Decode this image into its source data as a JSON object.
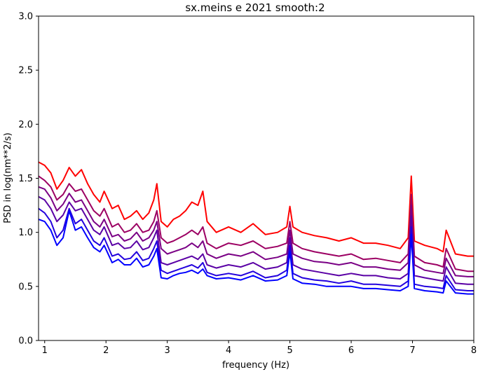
{
  "chart_data": {
    "type": "line",
    "title": "sx.meins e 2021 smooth:2",
    "xlabel": "frequency (Hz)",
    "ylabel": "PSD in log(nm**2/s)",
    "xlim": [
      0.9,
      8
    ],
    "ylim": [
      0.0,
      3.0
    ],
    "x_ticks": [
      1,
      2,
      3,
      4,
      5,
      6,
      7,
      8
    ],
    "x_tick_labels": [
      "1",
      "2",
      "3",
      "4",
      "5",
      "6",
      "7",
      "8"
    ],
    "y_ticks": [
      0.0,
      0.5,
      1.0,
      1.5,
      2.0,
      2.5,
      3.0
    ],
    "y_tick_labels": [
      "0.0",
      "0.5",
      "1.0",
      "1.5",
      "2.0",
      "2.5",
      "3.0"
    ],
    "grid": false,
    "legend": "none",
    "series": [
      {
        "color": "#ff0000",
        "x": [
          0.9,
          1.0,
          1.1,
          1.2,
          1.3,
          1.4,
          1.5,
          1.6,
          1.7,
          1.8,
          1.9,
          1.97,
          2.1,
          2.2,
          2.3,
          2.4,
          2.5,
          2.6,
          2.7,
          2.78,
          2.83,
          2.9,
          3.0,
          3.1,
          3.2,
          3.3,
          3.4,
          3.5,
          3.58,
          3.65,
          3.8,
          4.0,
          4.2,
          4.4,
          4.6,
          4.8,
          4.95,
          5.0,
          5.05,
          5.2,
          5.4,
          5.6,
          5.8,
          6.0,
          6.2,
          6.4,
          6.6,
          6.8,
          6.93,
          6.98,
          7.03,
          7.2,
          7.4,
          7.5,
          7.55,
          7.7,
          7.9,
          8.0
        ],
        "y": [
          1.65,
          1.62,
          1.55,
          1.4,
          1.48,
          1.6,
          1.52,
          1.58,
          1.45,
          1.35,
          1.28,
          1.38,
          1.22,
          1.25,
          1.12,
          1.15,
          1.2,
          1.12,
          1.18,
          1.3,
          1.45,
          1.1,
          1.05,
          1.12,
          1.15,
          1.2,
          1.28,
          1.25,
          1.38,
          1.1,
          1.0,
          1.05,
          1.0,
          1.08,
          0.98,
          1.0,
          1.05,
          1.24,
          1.05,
          1.0,
          0.97,
          0.95,
          0.92,
          0.95,
          0.9,
          0.9,
          0.88,
          0.85,
          0.95,
          1.52,
          0.92,
          0.88,
          0.85,
          0.82,
          1.02,
          0.8,
          0.78,
          0.78
        ]
      },
      {
        "color": "#9c0063",
        "x": [
          0.9,
          1.0,
          1.1,
          1.2,
          1.3,
          1.4,
          1.5,
          1.6,
          1.7,
          1.8,
          1.9,
          1.97,
          2.1,
          2.2,
          2.3,
          2.4,
          2.5,
          2.6,
          2.7,
          2.78,
          2.83,
          2.9,
          3.0,
          3.1,
          3.2,
          3.3,
          3.4,
          3.5,
          3.58,
          3.65,
          3.8,
          4.0,
          4.2,
          4.4,
          4.6,
          4.8,
          4.95,
          5.0,
          5.05,
          5.2,
          5.4,
          5.6,
          5.8,
          6.0,
          6.2,
          6.4,
          6.6,
          6.8,
          6.93,
          6.98,
          7.03,
          7.2,
          7.4,
          7.5,
          7.55,
          7.7,
          7.9,
          8.0
        ],
        "y": [
          1.52,
          1.48,
          1.42,
          1.3,
          1.35,
          1.45,
          1.38,
          1.4,
          1.3,
          1.2,
          1.15,
          1.22,
          1.05,
          1.08,
          1.0,
          1.02,
          1.08,
          1.0,
          1.02,
          1.1,
          1.2,
          0.95,
          0.9,
          0.92,
          0.95,
          0.98,
          1.02,
          0.98,
          1.05,
          0.9,
          0.85,
          0.9,
          0.88,
          0.92,
          0.85,
          0.87,
          0.9,
          1.1,
          0.9,
          0.85,
          0.82,
          0.8,
          0.78,
          0.8,
          0.75,
          0.76,
          0.74,
          0.72,
          0.8,
          1.35,
          0.78,
          0.72,
          0.7,
          0.68,
          0.85,
          0.66,
          0.64,
          0.64
        ]
      },
      {
        "color": "#7a0085",
        "x": [
          0.9,
          1.0,
          1.1,
          1.2,
          1.3,
          1.4,
          1.5,
          1.6,
          1.7,
          1.8,
          1.9,
          1.97,
          2.1,
          2.2,
          2.3,
          2.4,
          2.5,
          2.6,
          2.7,
          2.78,
          2.83,
          2.9,
          3.0,
          3.1,
          3.2,
          3.3,
          3.4,
          3.5,
          3.58,
          3.65,
          3.8,
          4.0,
          4.2,
          4.4,
          4.6,
          4.8,
          4.95,
          5.0,
          5.05,
          5.2,
          5.4,
          5.6,
          5.8,
          6.0,
          6.2,
          6.4,
          6.6,
          6.8,
          6.93,
          6.98,
          7.03,
          7.2,
          7.4,
          7.5,
          7.55,
          7.7,
          7.9,
          8.0
        ],
        "y": [
          1.42,
          1.4,
          1.32,
          1.2,
          1.26,
          1.36,
          1.28,
          1.3,
          1.2,
          1.1,
          1.05,
          1.12,
          0.96,
          0.98,
          0.92,
          0.94,
          1.0,
          0.92,
          0.95,
          1.02,
          1.1,
          0.85,
          0.8,
          0.82,
          0.84,
          0.86,
          0.9,
          0.86,
          0.92,
          0.8,
          0.76,
          0.8,
          0.78,
          0.82,
          0.75,
          0.77,
          0.8,
          1.02,
          0.8,
          0.76,
          0.73,
          0.72,
          0.7,
          0.72,
          0.68,
          0.68,
          0.66,
          0.65,
          0.72,
          1.25,
          0.7,
          0.65,
          0.63,
          0.62,
          0.76,
          0.6,
          0.59,
          0.59
        ]
      },
      {
        "color": "#5a00a5",
        "x": [
          0.9,
          1.0,
          1.1,
          1.2,
          1.3,
          1.4,
          1.5,
          1.6,
          1.7,
          1.8,
          1.9,
          1.97,
          2.1,
          2.2,
          2.3,
          2.4,
          2.5,
          2.6,
          2.7,
          2.78,
          2.83,
          2.9,
          3.0,
          3.1,
          3.2,
          3.3,
          3.4,
          3.5,
          3.58,
          3.65,
          3.8,
          4.0,
          4.2,
          4.4,
          4.6,
          4.8,
          4.95,
          5.0,
          5.05,
          5.2,
          5.4,
          5.6,
          5.8,
          6.0,
          6.2,
          6.4,
          6.6,
          6.8,
          6.93,
          6.98,
          7.03,
          7.2,
          7.4,
          7.5,
          7.55,
          7.7,
          7.9,
          8.0
        ],
        "y": [
          1.33,
          1.3,
          1.22,
          1.1,
          1.16,
          1.28,
          1.2,
          1.22,
          1.12,
          1.02,
          0.98,
          1.05,
          0.88,
          0.9,
          0.85,
          0.86,
          0.92,
          0.84,
          0.86,
          0.95,
          1.02,
          0.72,
          0.7,
          0.72,
          0.74,
          0.76,
          0.78,
          0.75,
          0.8,
          0.7,
          0.67,
          0.7,
          0.68,
          0.72,
          0.66,
          0.68,
          0.72,
          0.95,
          0.7,
          0.66,
          0.64,
          0.62,
          0.6,
          0.62,
          0.6,
          0.6,
          0.58,
          0.57,
          0.62,
          1.15,
          0.6,
          0.58,
          0.56,
          0.55,
          0.68,
          0.53,
          0.52,
          0.52
        ]
      },
      {
        "color": "#2200dd",
        "x": [
          0.9,
          1.0,
          1.1,
          1.2,
          1.3,
          1.4,
          1.5,
          1.6,
          1.7,
          1.8,
          1.9,
          1.97,
          2.1,
          2.2,
          2.3,
          2.4,
          2.5,
          2.6,
          2.7,
          2.78,
          2.83,
          2.9,
          3.0,
          3.1,
          3.2,
          3.3,
          3.4,
          3.5,
          3.58,
          3.65,
          3.8,
          4.0,
          4.2,
          4.4,
          4.6,
          4.8,
          4.95,
          5.0,
          5.05,
          5.2,
          5.4,
          5.6,
          5.8,
          6.0,
          6.2,
          6.4,
          6.6,
          6.8,
          6.93,
          6.98,
          7.03,
          7.2,
          7.4,
          7.5,
          7.55,
          7.7,
          7.9,
          8.0
        ],
        "y": [
          1.22,
          1.18,
          1.1,
          0.95,
          1.02,
          1.22,
          1.08,
          1.12,
          1.02,
          0.92,
          0.88,
          0.95,
          0.78,
          0.8,
          0.75,
          0.76,
          0.82,
          0.74,
          0.76,
          0.85,
          0.92,
          0.65,
          0.62,
          0.64,
          0.66,
          0.68,
          0.7,
          0.67,
          0.72,
          0.63,
          0.6,
          0.62,
          0.6,
          0.64,
          0.58,
          0.6,
          0.65,
          0.88,
          0.62,
          0.58,
          0.56,
          0.55,
          0.53,
          0.55,
          0.52,
          0.52,
          0.51,
          0.5,
          0.55,
          1.05,
          0.52,
          0.5,
          0.49,
          0.48,
          0.6,
          0.47,
          0.46,
          0.46
        ]
      },
      {
        "color": "#0000ff",
        "x": [
          0.9,
          1.0,
          1.1,
          1.2,
          1.3,
          1.4,
          1.5,
          1.6,
          1.7,
          1.8,
          1.9,
          1.97,
          2.1,
          2.2,
          2.3,
          2.4,
          2.5,
          2.6,
          2.7,
          2.78,
          2.83,
          2.9,
          3.0,
          3.1,
          3.2,
          3.3,
          3.4,
          3.5,
          3.58,
          3.65,
          3.8,
          4.0,
          4.2,
          4.4,
          4.6,
          4.8,
          4.95,
          5.0,
          5.05,
          5.2,
          5.4,
          5.6,
          5.8,
          6.0,
          6.2,
          6.4,
          6.6,
          6.8,
          6.93,
          6.98,
          7.03,
          7.2,
          7.4,
          7.5,
          7.55,
          7.7,
          7.9,
          8.0
        ],
        "y": [
          1.12,
          1.1,
          1.02,
          0.88,
          0.95,
          1.2,
          1.02,
          1.05,
          0.95,
          0.86,
          0.82,
          0.88,
          0.72,
          0.75,
          0.7,
          0.7,
          0.76,
          0.68,
          0.7,
          0.78,
          0.85,
          0.58,
          0.57,
          0.6,
          0.62,
          0.63,
          0.65,
          0.62,
          0.66,
          0.6,
          0.57,
          0.58,
          0.56,
          0.6,
          0.55,
          0.56,
          0.6,
          0.82,
          0.57,
          0.53,
          0.52,
          0.5,
          0.5,
          0.5,
          0.48,
          0.48,
          0.47,
          0.46,
          0.5,
          0.98,
          0.48,
          0.46,
          0.45,
          0.44,
          0.55,
          0.44,
          0.43,
          0.43
        ]
      }
    ]
  }
}
